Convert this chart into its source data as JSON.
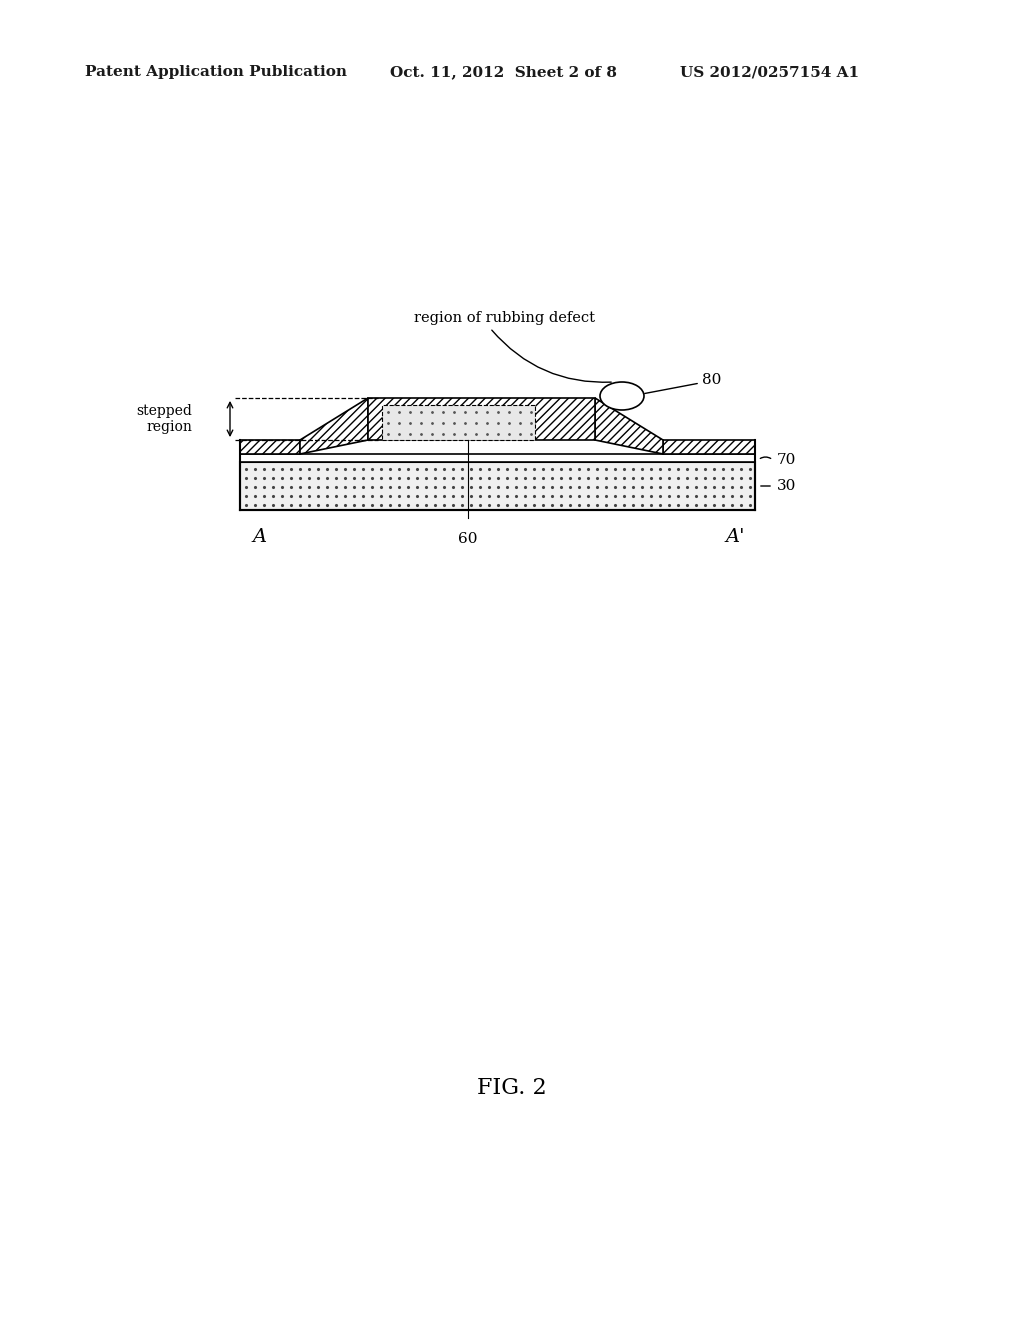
{
  "bg_color": "#ffffff",
  "header_left": "Patent Application Publication",
  "header_mid": "Oct. 11, 2012  Sheet 2 of 8",
  "header_right": "US 2012/0257154 A1",
  "fig_label": "FIG. 2",
  "diagram": {
    "layer30_label": "30",
    "layer70_label": "70",
    "label80": "80",
    "label60": "60",
    "label_A": "A",
    "label_Aprime": "A'",
    "label_stepped": "stepped\nregion",
    "label_rubbing": "region of rubbing defect"
  }
}
